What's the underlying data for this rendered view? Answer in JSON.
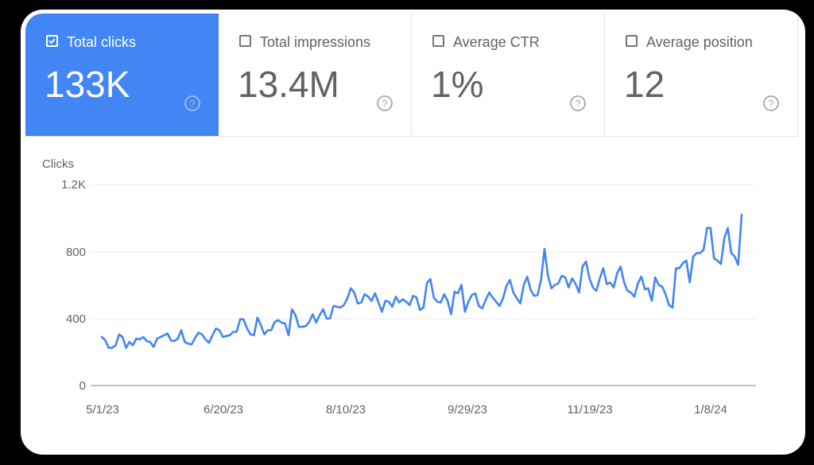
{
  "cards": [
    {
      "label": "Total clicks",
      "value": "133K",
      "checked": true,
      "help_icon": "help-circle-icon"
    },
    {
      "label": "Total impressions",
      "value": "13.4M",
      "checked": false,
      "help_icon": "help-circle-icon"
    },
    {
      "label": "Average CTR",
      "value": "1%",
      "checked": false,
      "help_icon": "help-circle-icon"
    },
    {
      "label": "Average position",
      "value": "12",
      "checked": false,
      "help_icon": "help-circle-icon"
    }
  ],
  "colors": {
    "accent": "#4285f4",
    "line": "#4285f4",
    "text_muted": "#5f6368",
    "gridline": "#eeeeee",
    "axis": "#9e9e9e"
  },
  "chart_data": {
    "type": "line",
    "title": "",
    "xlabel": "",
    "ylabel": "Clicks",
    "ylim": [
      0,
      1200
    ],
    "yticks": [
      "0",
      "400",
      "800",
      "1.2K"
    ],
    "ytick_values": [
      0,
      400,
      800,
      1200
    ],
    "xticks": [
      "5/1/23",
      "6/20/23",
      "8/10/23",
      "9/29/23",
      "11/19/23",
      "1/8/24"
    ],
    "grid": true,
    "legend": "none",
    "series": [
      {
        "name": "Clicks",
        "x_start": "5/1/23",
        "x_step_days": 1.65,
        "values": [
          290,
          270,
          225,
          225,
          240,
          305,
          290,
          225,
          260,
          240,
          280,
          275,
          290,
          265,
          260,
          230,
          280,
          290,
          300,
          310,
          270,
          265,
          280,
          330,
          260,
          250,
          245,
          285,
          315,
          305,
          275,
          255,
          300,
          340,
          330,
          290,
          295,
          300,
          320,
          320,
          395,
          395,
          340,
          305,
          300,
          405,
          360,
          305,
          330,
          330,
          380,
          390,
          375,
          370,
          300,
          455,
          420,
          350,
          350,
          355,
          380,
          425,
          375,
          420,
          455,
          400,
          400,
          475,
          470,
          465,
          480,
          520,
          580,
          555,
          490,
          495,
          545,
          530,
          505,
          550,
          495,
          440,
          505,
          500,
          470,
          530,
          495,
          515,
          500,
          480,
          535,
          525,
          450,
          465,
          610,
          635,
          525,
          500,
          495,
          545,
          505,
          425,
          560,
          550,
          600,
          440,
          500,
          540,
          550,
          475,
          460,
          510,
          555,
          525,
          500,
          475,
          520,
          595,
          630,
          555,
          520,
          490,
          600,
          650,
          570,
          535,
          540,
          630,
          815,
          655,
          580,
          600,
          610,
          655,
          645,
          585,
          640,
          605,
          555,
          710,
          740,
          640,
          585,
          565,
          640,
          700,
          605,
          615,
          585,
          670,
          710,
          615,
          565,
          555,
          530,
          610,
          650,
          575,
          580,
          505,
          645,
          600,
          590,
          545,
          480,
          465,
          700,
          700,
          730,
          745,
          615,
          770,
          790,
          790,
          810,
          940,
          940,
          760,
          745,
          725,
          880,
          940,
          790,
          770,
          720,
          1020
        ]
      }
    ]
  }
}
